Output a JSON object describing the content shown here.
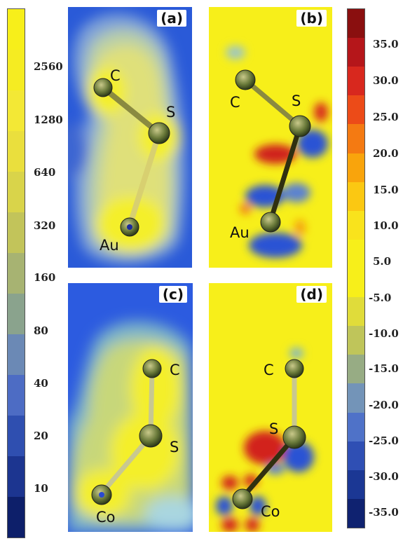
{
  "left_colorbar": {
    "ticks": [
      "2560",
      "1280",
      "640",
      "320",
      "160",
      "80",
      "40",
      "20",
      "10"
    ],
    "colors": [
      "#f7ef1a",
      "#f5ec22",
      "#f3e835",
      "#eadf3d",
      "#d9d44a",
      "#c2c45a",
      "#a7b372",
      "#8aa38d",
      "#6b89b5",
      "#4d6cc4",
      "#2f4fb0",
      "#1c3590",
      "#0d1f6a"
    ]
  },
  "right_colorbar": {
    "ticks": [
      "35.0",
      "30.0",
      "25.0",
      "20.0",
      "15.0",
      "10.0",
      "5.0",
      "-5.0",
      "-10.0",
      "-15.0",
      "-20.0",
      "-25.0",
      "-30.0",
      "-35.0"
    ],
    "colors": [
      "#8a0f0f",
      "#b5161a",
      "#d8281e",
      "#ec4b18",
      "#f47a12",
      "#f9a40c",
      "#fbc812",
      "#f9e31c",
      "#f7ef1a",
      "#f7ef1a",
      "#e0dc3a",
      "#bfc55a",
      "#97ac84",
      "#7394b8",
      "#4f72c8",
      "#2f4fb4",
      "#1b3794",
      "#0f2270"
    ]
  },
  "panels": [
    {
      "id": "a",
      "label": "(a)",
      "atoms": [
        "C",
        "S",
        "Au"
      ]
    },
    {
      "id": "b",
      "label": "(b)",
      "atoms": [
        "C",
        "S",
        "Au"
      ]
    },
    {
      "id": "c",
      "label": "(c)",
      "atoms": [
        "C",
        "S",
        "Co"
      ]
    },
    {
      "id": "d",
      "label": "(d)",
      "atoms": [
        "C",
        "S",
        "Co"
      ]
    }
  ]
}
